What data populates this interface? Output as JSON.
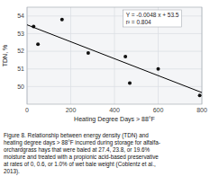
{
  "chart_data": {
    "type": "scatter",
    "xlabel": "Heating Degree Days > 88°F",
    "ylabel": "TDN, %",
    "series": [
      {
        "type": "scatter",
        "color": "#111111",
        "marker": "circle",
        "x": [
          30,
          50,
          160,
          280,
          450,
          470,
          600,
          790
        ],
        "values": [
          53.4,
          52.4,
          53.8,
          51.9,
          51.7,
          50.2,
          51.0,
          49.5
        ]
      },
      {
        "type": "line",
        "color": "#000000",
        "line_style": "solid",
        "x": [
          0,
          800
        ],
        "values": [
          53.5,
          49.66
        ]
      }
    ],
    "annotations": [
      "Y = -0.0048 x + 53.5",
      "r² = 0.804"
    ],
    "caption": "Figure 8. Relationship between energy density (TDN) and\nheating degree days > 88°F incurred during storage for alfalfa-\norchardgrass hays that were baled at 27.4, 23.8, or 19.6%\nmoisture and treated with a propionic acid-based preservative\nat rates of 0, 0.6, or 1.0% of wet bale weight (Coblentz et al.,\n2013).",
    "xlim": [
      0,
      800
    ],
    "ylim": [
      49.0,
      54.5
    ],
    "xticks": [
      0,
      200,
      400,
      600,
      800
    ],
    "yticks": [
      50,
      51,
      52,
      53,
      54
    ],
    "grid": true
  }
}
